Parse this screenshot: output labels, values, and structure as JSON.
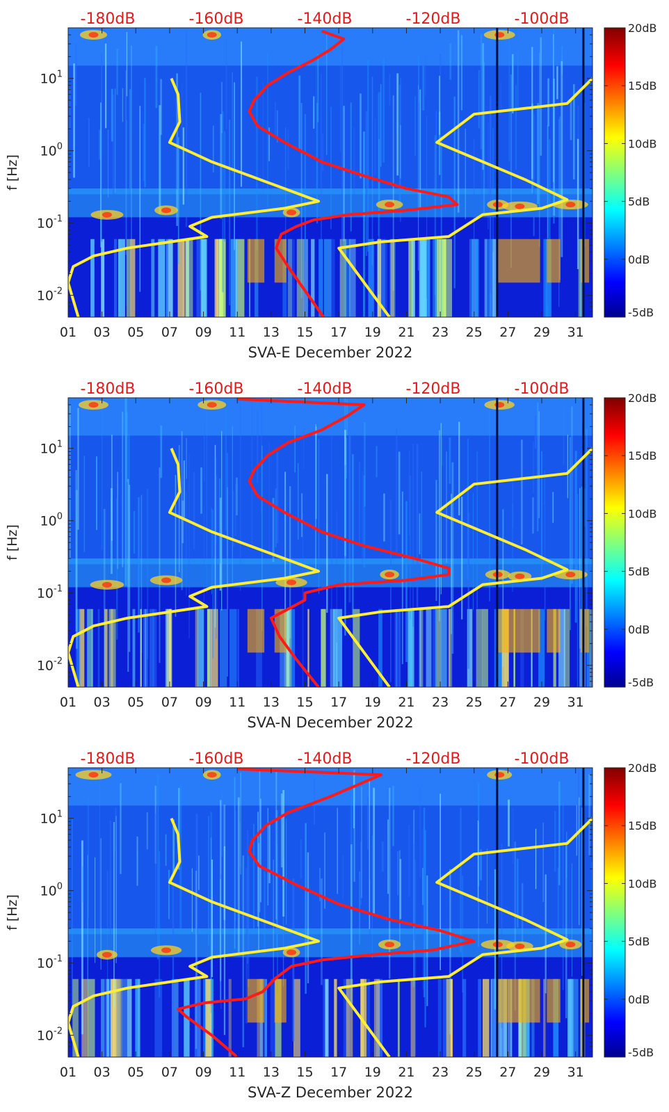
{
  "chart_data": [
    {
      "type": "heatmap",
      "xlabel": "SVA-E December 2022",
      "ylabel": "f [Hz]",
      "xticks": [
        "01",
        "03",
        "05",
        "07",
        "09",
        "11",
        "13",
        "15",
        "17",
        "19",
        "21",
        "23",
        "25",
        "27",
        "29",
        "31"
      ],
      "xlim": [
        1,
        32
      ],
      "yscale": "log",
      "ylim": [
        0.005,
        50
      ],
      "yticks": [
        {
          "value": 0.01,
          "base": "10",
          "exp": "-2"
        },
        {
          "value": 0.1,
          "base": "10",
          "exp": "-1"
        },
        {
          "value": 1,
          "base": "10",
          "exp": "0"
        },
        {
          "value": 10,
          "base": "10",
          "exp": "1"
        }
      ],
      "top_labels": [
        "-180dB",
        "-160dB",
        "-140dB",
        "-120dB",
        "-100dB"
      ],
      "colorbar": {
        "ticks": [
          "20dB",
          "15dB",
          "10dB",
          "5dB",
          "0dB",
          "-5dB"
        ],
        "range": [
          -5,
          20
        ],
        "colormap": "jet"
      },
      "series": [
        {
          "color": "#ff1a1a",
          "points": [
            [
              16.1,
              0.005
            ],
            [
              15.2,
              0.01
            ],
            [
              14.0,
              0.025
            ],
            [
              13.3,
              0.045
            ],
            [
              13.6,
              0.07
            ],
            [
              14.5,
              0.09
            ],
            [
              15.5,
              0.11
            ],
            [
              17.5,
              0.13
            ],
            [
              21.0,
              0.15
            ],
            [
              24.0,
              0.18
            ],
            [
              23.5,
              0.23
            ],
            [
              21.0,
              0.3
            ],
            [
              18.5,
              0.45
            ],
            [
              16.0,
              0.7
            ],
            [
              13.8,
              1.3
            ],
            [
              12.2,
              2.2
            ],
            [
              11.7,
              3.5
            ],
            [
              12.0,
              5
            ],
            [
              12.8,
              8
            ],
            [
              14.0,
              12
            ],
            [
              15.5,
              18
            ],
            [
              16.5,
              25
            ],
            [
              17.3,
              35
            ],
            [
              16.0,
              45
            ]
          ]
        },
        {
          "color": "#ffee33",
          "points": [
            [
              1.6,
              0.005
            ],
            [
              1.0,
              0.015
            ],
            [
              1.3,
              0.025
            ],
            [
              2.5,
              0.035
            ],
            [
              4.5,
              0.045
            ],
            [
              9.2,
              0.065
            ],
            [
              8.2,
              0.09
            ],
            [
              9.5,
              0.12
            ],
            [
              13.8,
              0.16
            ],
            [
              15.8,
              0.2
            ],
            [
              13.0,
              0.35
            ],
            [
              9.5,
              0.7
            ],
            [
              7.0,
              1.3
            ],
            [
              7.6,
              2.5
            ],
            [
              7.5,
              6
            ],
            [
              7.1,
              10
            ]
          ]
        },
        {
          "color": "#ffee33",
          "points": [
            [
              20.0,
              0.005
            ],
            [
              17.0,
              0.045
            ],
            [
              19.5,
              0.055
            ],
            [
              23.5,
              0.065
            ],
            [
              25.5,
              0.13
            ],
            [
              29.0,
              0.16
            ],
            [
              30.5,
              0.21
            ],
            [
              28.0,
              0.4
            ],
            [
              22.8,
              1.3
            ],
            [
              25.0,
              3.2
            ],
            [
              30.5,
              4.5
            ],
            [
              32,
              10
            ]
          ]
        }
      ]
    },
    {
      "type": "heatmap",
      "xlabel": "SVA-N December 2022",
      "ylabel": "f [Hz]",
      "xticks": [
        "01",
        "03",
        "05",
        "07",
        "09",
        "11",
        "13",
        "15",
        "17",
        "19",
        "21",
        "23",
        "25",
        "27",
        "29",
        "31"
      ],
      "xlim": [
        1,
        32
      ],
      "yscale": "log",
      "ylim": [
        0.005,
        50
      ],
      "yticks": [
        {
          "value": 0.01,
          "base": "10",
          "exp": "-2"
        },
        {
          "value": 0.1,
          "base": "10",
          "exp": "-1"
        },
        {
          "value": 1,
          "base": "10",
          "exp": "0"
        },
        {
          "value": 10,
          "base": "10",
          "exp": "1"
        }
      ],
      "top_labels": [
        "-180dB",
        "-160dB",
        "-140dB",
        "-120dB",
        "-100dB"
      ],
      "colorbar": {
        "ticks": [
          "20dB",
          "15dB",
          "10dB",
          "5dB",
          "0dB",
          "-5dB"
        ],
        "range": [
          -5,
          20
        ],
        "colormap": "jet"
      },
      "series": [
        {
          "color": "#ff1a1a",
          "points": [
            [
              15.8,
              0.005
            ],
            [
              14.5,
              0.012
            ],
            [
              13.5,
              0.025
            ],
            [
              13.0,
              0.045
            ],
            [
              14.0,
              0.06
            ],
            [
              15.0,
              0.08
            ],
            [
              15.0,
              0.1
            ],
            [
              17.0,
              0.13
            ],
            [
              21.0,
              0.15
            ],
            [
              23.5,
              0.18
            ],
            [
              23.5,
              0.22
            ],
            [
              21.5,
              0.3
            ],
            [
              18.5,
              0.45
            ],
            [
              16.0,
              0.7
            ],
            [
              13.8,
              1.3
            ],
            [
              12.2,
              2.2
            ],
            [
              11.7,
              3.5
            ],
            [
              12.0,
              5
            ],
            [
              12.8,
              8
            ],
            [
              14.0,
              12
            ],
            [
              16.0,
              18
            ],
            [
              17.5,
              28
            ],
            [
              18.5,
              40
            ],
            [
              11.0,
              48
            ]
          ]
        },
        {
          "color": "#ffee33",
          "points": [
            [
              1.6,
              0.005
            ],
            [
              1.0,
              0.015
            ],
            [
              1.3,
              0.025
            ],
            [
              2.5,
              0.035
            ],
            [
              4.5,
              0.045
            ],
            [
              9.2,
              0.065
            ],
            [
              8.2,
              0.09
            ],
            [
              9.5,
              0.12
            ],
            [
              13.8,
              0.16
            ],
            [
              15.8,
              0.2
            ],
            [
              13.0,
              0.35
            ],
            [
              9.5,
              0.7
            ],
            [
              7.0,
              1.3
            ],
            [
              7.6,
              2.5
            ],
            [
              7.5,
              6
            ],
            [
              7.1,
              10
            ]
          ]
        },
        {
          "color": "#ffee33",
          "points": [
            [
              20.0,
              0.005
            ],
            [
              17.0,
              0.045
            ],
            [
              19.5,
              0.055
            ],
            [
              23.5,
              0.065
            ],
            [
              25.5,
              0.13
            ],
            [
              29.0,
              0.16
            ],
            [
              30.5,
              0.21
            ],
            [
              28.0,
              0.4
            ],
            [
              22.8,
              1.3
            ],
            [
              25.0,
              3.2
            ],
            [
              30.5,
              4.5
            ],
            [
              32,
              10
            ]
          ]
        }
      ]
    },
    {
      "type": "heatmap",
      "xlabel": "SVA-Z December 2022",
      "ylabel": "f [Hz]",
      "xticks": [
        "01",
        "03",
        "05",
        "07",
        "09",
        "11",
        "13",
        "15",
        "17",
        "19",
        "21",
        "23",
        "25",
        "27",
        "29",
        "31"
      ],
      "xlim": [
        1,
        32
      ],
      "yscale": "log",
      "ylim": [
        0.005,
        50
      ],
      "yticks": [
        {
          "value": 0.01,
          "base": "10",
          "exp": "-2"
        },
        {
          "value": 0.1,
          "base": "10",
          "exp": "-1"
        },
        {
          "value": 1,
          "base": "10",
          "exp": "0"
        },
        {
          "value": 10,
          "base": "10",
          "exp": "1"
        }
      ],
      "top_labels": [
        "-180dB",
        "-160dB",
        "-140dB",
        "-120dB",
        "-100dB"
      ],
      "colorbar": {
        "ticks": [
          "20dB",
          "15dB",
          "10dB",
          "5dB",
          "0dB",
          "-5dB"
        ],
        "range": [
          -5,
          20
        ],
        "colormap": "jet"
      },
      "series": [
        {
          "color": "#ff1a1a",
          "points": [
            [
              11.0,
              0.005
            ],
            [
              9.5,
              0.01
            ],
            [
              8.0,
              0.018
            ],
            [
              7.5,
              0.023
            ],
            [
              9.0,
              0.028
            ],
            [
              11.5,
              0.032
            ],
            [
              12.5,
              0.04
            ],
            [
              13.2,
              0.06
            ],
            [
              14.2,
              0.09
            ],
            [
              16.0,
              0.11
            ],
            [
              19.0,
              0.13
            ],
            [
              22.5,
              0.15
            ],
            [
              25.0,
              0.2
            ],
            [
              23.0,
              0.28
            ],
            [
              20.0,
              0.4
            ],
            [
              17.0,
              0.65
            ],
            [
              14.5,
              1.2
            ],
            [
              12.3,
              2.2
            ],
            [
              11.7,
              3.5
            ],
            [
              11.9,
              5
            ],
            [
              12.7,
              8
            ],
            [
              14.0,
              12
            ],
            [
              16.5,
              20
            ],
            [
              19.5,
              40
            ],
            [
              11.0,
              48
            ]
          ]
        },
        {
          "color": "#ffee33",
          "points": [
            [
              1.6,
              0.005
            ],
            [
              1.0,
              0.015
            ],
            [
              1.3,
              0.025
            ],
            [
              2.5,
              0.035
            ],
            [
              4.5,
              0.045
            ],
            [
              9.2,
              0.065
            ],
            [
              8.2,
              0.09
            ],
            [
              9.5,
              0.12
            ],
            [
              13.8,
              0.16
            ],
            [
              15.8,
              0.2
            ],
            [
              13.0,
              0.35
            ],
            [
              9.5,
              0.7
            ],
            [
              7.0,
              1.3
            ],
            [
              7.6,
              2.5
            ],
            [
              7.5,
              6
            ],
            [
              7.1,
              10
            ]
          ]
        },
        {
          "color": "#ffee33",
          "points": [
            [
              20.0,
              0.005
            ],
            [
              17.0,
              0.045
            ],
            [
              19.5,
              0.055
            ],
            [
              23.5,
              0.065
            ],
            [
              25.5,
              0.13
            ],
            [
              29.0,
              0.16
            ],
            [
              30.5,
              0.21
            ],
            [
              28.0,
              0.4
            ],
            [
              22.8,
              1.3
            ],
            [
              25.0,
              3.2
            ],
            [
              30.5,
              4.5
            ],
            [
              32,
              10
            ]
          ]
        }
      ]
    }
  ]
}
